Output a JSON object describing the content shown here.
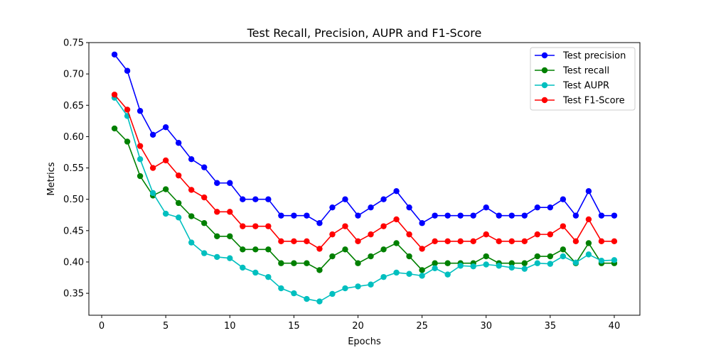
{
  "chart_data": {
    "type": "line",
    "title": "Test Recall, Precision, AUPR and F1-Score",
    "xlabel": "Epochs",
    "ylabel": "Metrics",
    "xlim": [
      -1,
      42
    ],
    "ylim": [
      0.315,
      0.75
    ],
    "xticks": [
      0,
      5,
      10,
      15,
      20,
      25,
      30,
      35,
      40
    ],
    "yticks": [
      0.35,
      0.4,
      0.45,
      0.5,
      0.55,
      0.6,
      0.65,
      0.7,
      0.75
    ],
    "grid": false,
    "legend_position": "top-right",
    "x": [
      1,
      2,
      3,
      4,
      5,
      6,
      7,
      8,
      9,
      10,
      11,
      12,
      13,
      14,
      15,
      16,
      17,
      18,
      19,
      20,
      21,
      22,
      23,
      24,
      25,
      26,
      27,
      28,
      29,
      30,
      31,
      32,
      33,
      34,
      35,
      36,
      37,
      38,
      39,
      40
    ],
    "series": [
      {
        "name": "Test precision",
        "color": "#0000ff",
        "values": [
          0.731,
          0.705,
          0.641,
          0.603,
          0.615,
          0.59,
          0.564,
          0.551,
          0.526,
          0.526,
          0.5,
          0.5,
          0.5,
          0.474,
          0.474,
          0.474,
          0.462,
          0.487,
          0.5,
          0.474,
          0.487,
          0.5,
          0.513,
          0.487,
          0.462,
          0.474,
          0.474,
          0.474,
          0.474,
          0.487,
          0.474,
          0.474,
          0.474,
          0.487,
          0.487,
          0.5,
          0.474,
          0.513,
          0.474,
          0.474
        ]
      },
      {
        "name": "Test recall",
        "color": "#008000",
        "values": [
          0.613,
          0.592,
          0.537,
          0.506,
          0.516,
          0.494,
          0.473,
          0.462,
          0.441,
          0.441,
          0.42,
          0.42,
          0.42,
          0.398,
          0.398,
          0.398,
          0.387,
          0.409,
          0.42,
          0.398,
          0.409,
          0.42,
          0.43,
          0.409,
          0.387,
          0.398,
          0.398,
          0.398,
          0.398,
          0.409,
          0.398,
          0.398,
          0.398,
          0.409,
          0.409,
          0.42,
          0.398,
          0.43,
          0.398,
          0.398
        ]
      },
      {
        "name": "Test AUPR",
        "color": "#00bfbf",
        "values": [
          0.662,
          0.633,
          0.564,
          0.51,
          0.477,
          0.471,
          0.431,
          0.414,
          0.408,
          0.406,
          0.391,
          0.383,
          0.376,
          0.358,
          0.35,
          0.341,
          0.337,
          0.349,
          0.358,
          0.361,
          0.364,
          0.376,
          0.383,
          0.381,
          0.378,
          0.39,
          0.38,
          0.394,
          0.393,
          0.396,
          0.394,
          0.391,
          0.389,
          0.398,
          0.397,
          0.409,
          0.399,
          0.412,
          0.402,
          0.403
        ]
      },
      {
        "name": "Test F1-Score",
        "color": "#ff0000",
        "values": [
          0.667,
          0.643,
          0.585,
          0.55,
          0.562,
          0.538,
          0.515,
          0.503,
          0.48,
          0.48,
          0.457,
          0.457,
          0.457,
          0.433,
          0.433,
          0.433,
          0.421,
          0.444,
          0.457,
          0.433,
          0.444,
          0.457,
          0.468,
          0.444,
          0.421,
          0.433,
          0.433,
          0.433,
          0.433,
          0.444,
          0.433,
          0.433,
          0.433,
          0.444,
          0.444,
          0.457,
          0.433,
          0.468,
          0.433,
          0.433
        ]
      }
    ]
  }
}
